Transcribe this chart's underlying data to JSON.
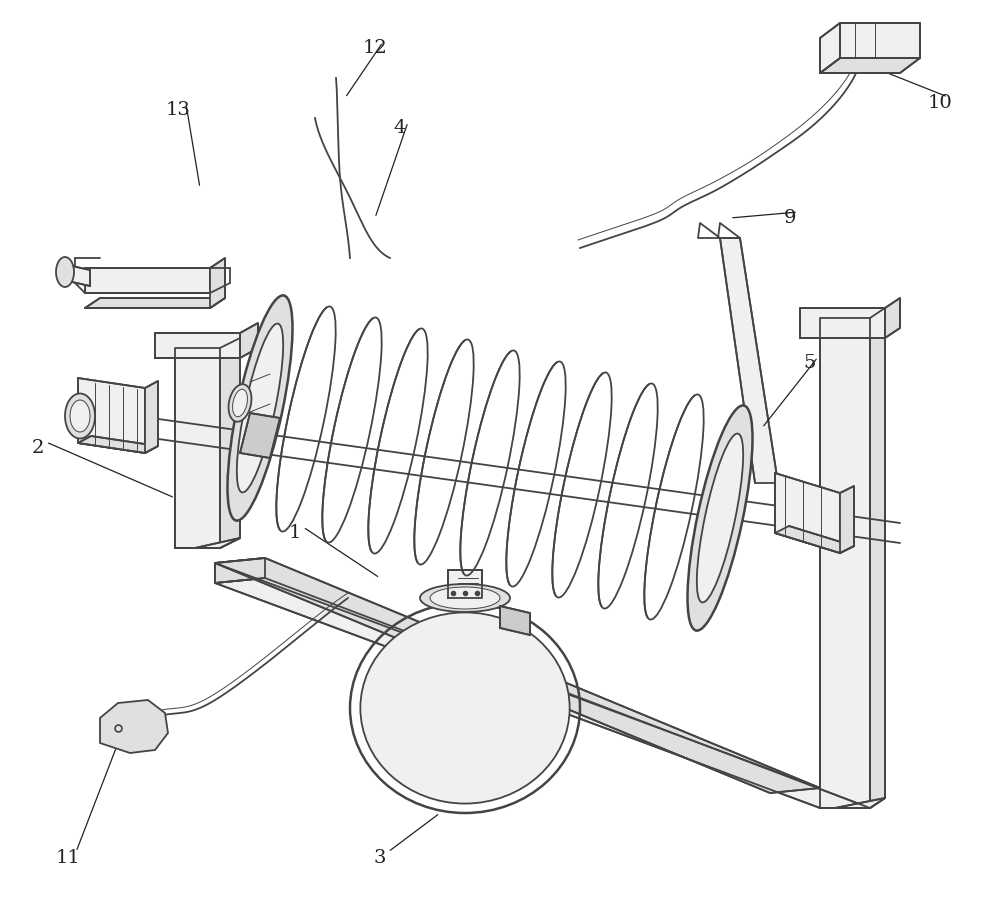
{
  "background_color": "#ffffff",
  "lc": "#444444",
  "lw": 1.3,
  "lw_thin": 0.7,
  "lw_thick": 1.8,
  "label_fontsize": 14,
  "label_color": "#222222",
  "figsize": [
    10.0,
    9.18
  ],
  "dpi": 100
}
